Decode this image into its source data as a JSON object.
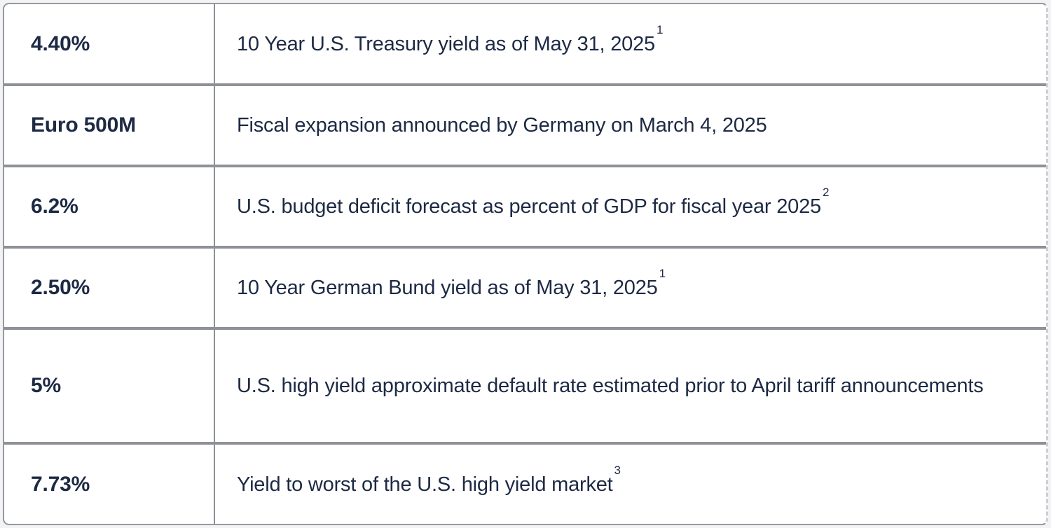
{
  "table": {
    "rows": [
      {
        "stat": "4.40%",
        "description": "10 Year U.S. Treasury yield as of May 31, 2025",
        "footnote": "1"
      },
      {
        "stat": "Euro 500M",
        "description": "Fiscal expansion announced by Germany on March 4, 2025",
        "footnote": ""
      },
      {
        "stat": "6.2%",
        "description": "U.S. budget deficit forecast as percent of GDP for fiscal year 2025",
        "footnote": "2"
      },
      {
        "stat": "2.50%",
        "description": "10 Year German Bund yield as of May 31, 2025",
        "footnote": "1"
      },
      {
        "stat": "5%",
        "description": "U.S. high yield approximate default rate estimated prior to April tariff announcements",
        "footnote": ""
      },
      {
        "stat": "7.73%",
        "description": "Yield to worst of the U.S. high yield market",
        "footnote": "3"
      }
    ]
  },
  "colors": {
    "text": "#1d2a44",
    "separator": "#8e9196",
    "outer_border": "#97999d",
    "page_background": "#f1f3f5",
    "cell_background": "#ffffff"
  }
}
